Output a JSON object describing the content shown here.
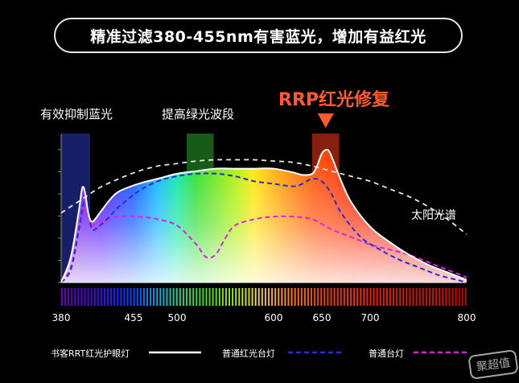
{
  "title": "精准过滤380-455nm有害蓝光，增加有益红光",
  "annotations": {
    "blue_filter": "有效抑制蓝光",
    "green_boost": "提高绿光波段",
    "red_repair": "RRP红光修复",
    "sunlight": "太阳光谱"
  },
  "legend": {
    "lamp_rrt": "书客RRT红光护眼灯",
    "lamp_red": "普通红光台灯",
    "lamp_normal": "普通台灯"
  },
  "watermark": "聚超值",
  "colors": {
    "lamp_rrt": "#ffffff",
    "lamp_red": "#2b2bd6",
    "lamp_normal": "#e020e0",
    "sunlight": "#e6e6e6",
    "rrp_label": "#ff5a2e",
    "blue_band": "#1e2a8a",
    "green_band": "#1f7a22",
    "red_band": "#b32a10"
  },
  "chart_data": {
    "type": "line",
    "xlabel": "",
    "ylabel": "",
    "xlim": [
      380,
      800
    ],
    "x_ticks": [
      380,
      455,
      500,
      600,
      650,
      700,
      800
    ],
    "tick_labels": [
      "380",
      "455",
      "500",
      "600",
      "650",
      "700",
      "800"
    ],
    "bands": [
      {
        "name": "有效抑制蓝光",
        "range": [
          380,
          410
        ]
      },
      {
        "name": "提高绿光波段",
        "range": [
          510,
          538
        ]
      },
      {
        "name": "RRP红光修复",
        "range": [
          640,
          668
        ]
      }
    ],
    "series": [
      {
        "name": "书客RRT红光护眼灯",
        "x": [
          380,
          390,
          398,
          402,
          405,
          408,
          412,
          420,
          430,
          440,
          460,
          480,
          500,
          520,
          540,
          560,
          580,
          600,
          620,
          630,
          640,
          645,
          650,
          655,
          658,
          662,
          668,
          680,
          700,
          720,
          740,
          760,
          780,
          800
        ],
        "y": [
          0,
          20,
          55,
          75,
          70,
          55,
          48,
          55,
          65,
          72,
          78,
          82,
          86,
          88,
          90,
          90,
          90,
          90,
          87,
          85,
          86,
          92,
          102,
          105,
          103,
          96,
          84,
          64,
          44,
          32,
          22,
          14,
          8,
          2
        ]
      },
      {
        "name": "普通红光台灯",
        "x": [
          380,
          390,
          398,
          404,
          408,
          412,
          420,
          430,
          440,
          460,
          480,
          500,
          520,
          540,
          560,
          580,
          600,
          620,
          630,
          640,
          650,
          660,
          670,
          690,
          710,
          730,
          750,
          770,
          790,
          800
        ],
        "y": [
          0,
          10,
          40,
          65,
          58,
          42,
          45,
          52,
          60,
          72,
          80,
          84,
          86,
          86,
          84,
          80,
          78,
          76,
          78,
          82,
          80,
          70,
          55,
          36,
          26,
          18,
          12,
          6,
          2,
          0
        ]
      },
      {
        "name": "普通台灯",
        "x": [
          380,
          390,
          398,
          404,
          408,
          412,
          420,
          440,
          460,
          480,
          500,
          520,
          530,
          540,
          550,
          560,
          580,
          600,
          620,
          640,
          660,
          680,
          700,
          720,
          740,
          760,
          780,
          800
        ],
        "y": [
          0,
          12,
          42,
          58,
          52,
          45,
          48,
          52,
          52,
          50,
          45,
          30,
          20,
          22,
          35,
          45,
          50,
          52,
          52,
          50,
          42,
          36,
          30,
          26,
          22,
          16,
          10,
          4
        ]
      },
      {
        "name": "太阳光谱",
        "x": [
          380,
          400,
          420,
          440,
          460,
          480,
          500,
          520,
          540,
          560,
          580,
          600,
          620,
          640,
          660,
          680,
          700,
          720,
          740,
          760,
          780,
          800
        ],
        "y": [
          55,
          65,
          75,
          82,
          88,
          92,
          94,
          96,
          97,
          97,
          97,
          96,
          95,
          92,
          88,
          84,
          80,
          74,
          68,
          60,
          50,
          38
        ]
      }
    ]
  }
}
